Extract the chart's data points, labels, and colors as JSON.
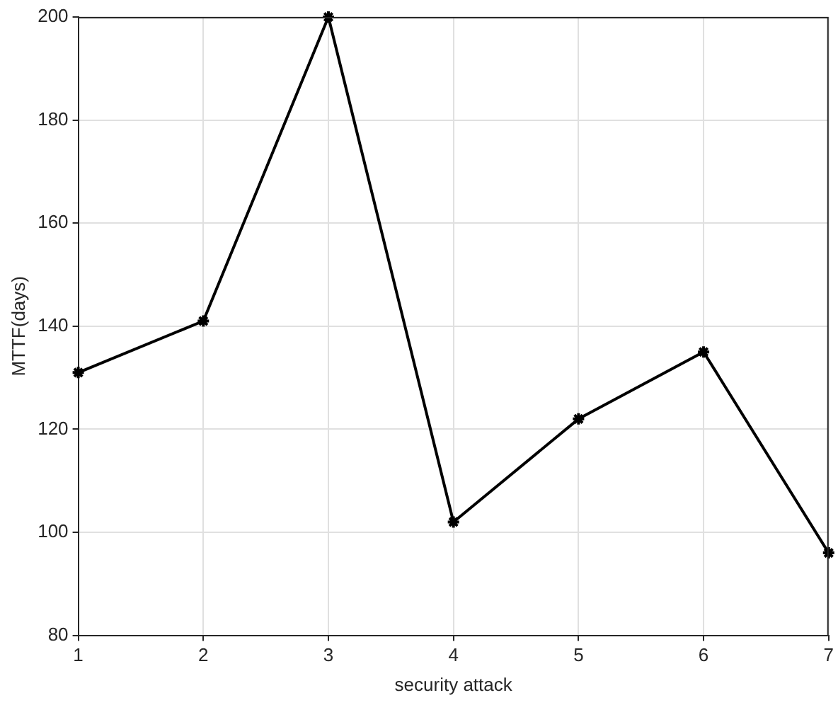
{
  "chart_data": {
    "type": "line",
    "xlabel": "security attack",
    "ylabel": "MTTF(days)",
    "x": [
      1,
      2,
      3,
      4,
      5,
      6,
      7
    ],
    "series": [
      {
        "color": "#000000",
        "values": [
          131,
          141,
          200,
          102,
          122,
          135,
          96
        ]
      }
    ],
    "xlim": [
      1,
      7
    ],
    "xticks": [
      1,
      2,
      3,
      4,
      5,
      6,
      7
    ],
    "ylim": [
      80,
      200
    ],
    "yticks": [
      80,
      100,
      120,
      140,
      160,
      180,
      200
    ],
    "grid": true,
    "marker": "cross",
    "line_style": "solid"
  }
}
